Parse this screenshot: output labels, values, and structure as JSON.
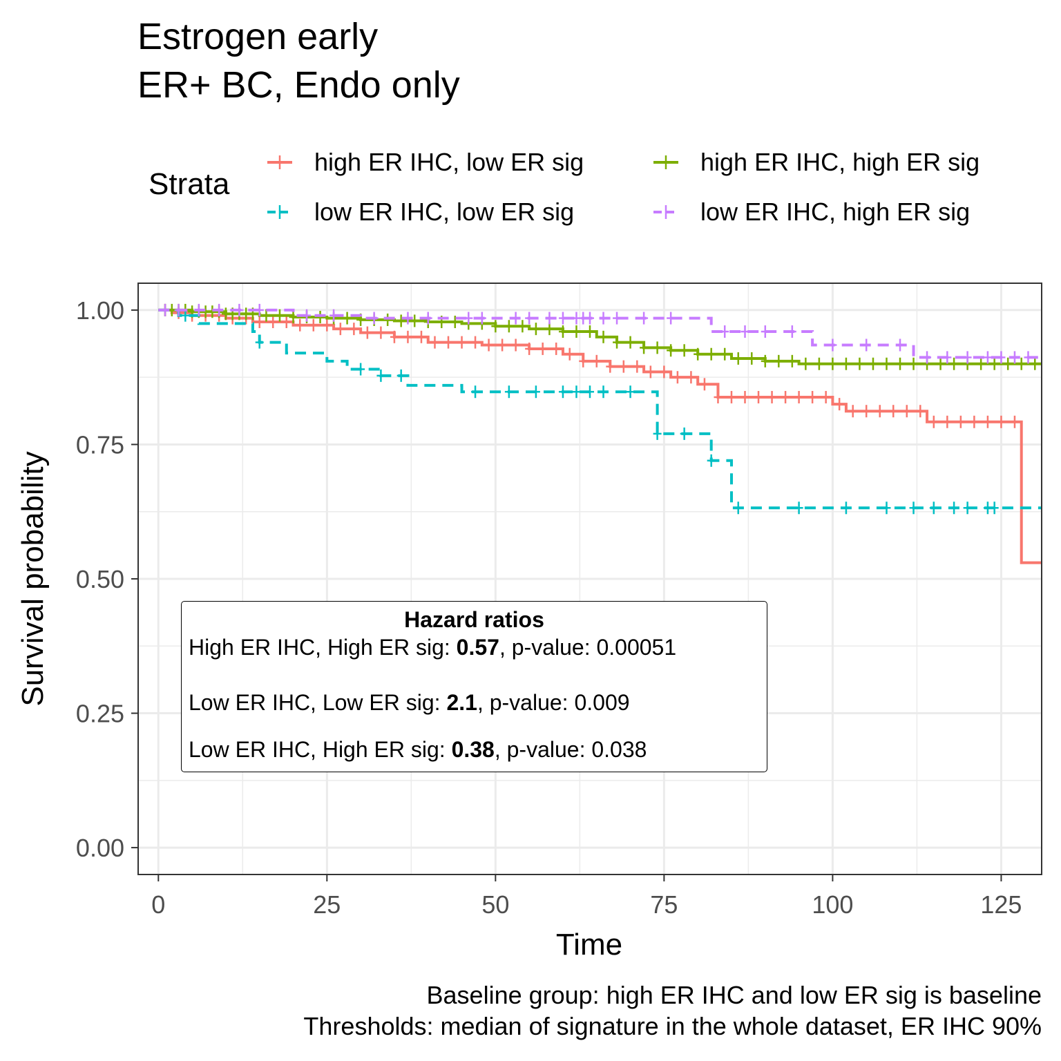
{
  "title_lines": [
    "Estrogen early",
    "ER+ BC, Endo only"
  ],
  "legend": {
    "title": "Strata",
    "items": [
      {
        "label": "high ER IHC, low ER sig",
        "color": "#F8766D",
        "dash": "solid"
      },
      {
        "label": "high ER IHC, high ER sig",
        "color": "#7CAE00",
        "dash": "solid"
      },
      {
        "label": "low ER IHC, low ER sig",
        "color": "#00BFC4",
        "dash": "dashed"
      },
      {
        "label": "low ER IHC, high ER sig",
        "color": "#C77CFF",
        "dash": "dashed"
      }
    ]
  },
  "hazard_box": {
    "title": "Hazard ratios",
    "rows": [
      {
        "prefix": "High ER IHC, High ER sig: ",
        "hr": "0.57",
        "suffix": ", p-value:  0.00051"
      },
      {
        "prefix": "Low ER IHC, Low ER sig: ",
        "hr": "2.1",
        "suffix": ", p-value:  0.009"
      },
      {
        "prefix": "Low ER IHC, High ER sig: ",
        "hr": "0.38",
        "suffix": ", p-value:  0.038"
      }
    ]
  },
  "caption": [
    "Baseline group: high ER IHC and low ER sig is baseline",
    "Thresholds: median of signature in the whole dataset, ER IHC 90%"
  ],
  "chart_data": {
    "type": "line",
    "subtype": "kaplan-meier step",
    "xlabel": "Time",
    "ylabel": "Survival probability",
    "xlim": [
      -3,
      131
    ],
    "ylim": [
      -0.05,
      1.05
    ],
    "x_ticks": [
      0,
      25,
      50,
      75,
      100,
      125
    ],
    "x_tick_labels": [
      "0",
      "25",
      "50",
      "75",
      "100",
      "125"
    ],
    "y_ticks": [
      0,
      0.25,
      0.5,
      0.75,
      1
    ],
    "y_tick_labels": [
      "0.00",
      "0.25",
      "0.50",
      "0.75",
      "1.00"
    ],
    "grid": true,
    "legend_position": "top",
    "series": [
      {
        "name": "high ER IHC, low ER sig",
        "color": "#F8766D",
        "dash": "solid",
        "steps": [
          [
            0,
            1.0
          ],
          [
            2,
            0.995
          ],
          [
            5,
            0.99
          ],
          [
            10,
            0.985
          ],
          [
            14,
            0.978
          ],
          [
            20,
            0.972
          ],
          [
            26,
            0.965
          ],
          [
            30,
            0.958
          ],
          [
            35,
            0.95
          ],
          [
            40,
            0.94
          ],
          [
            48,
            0.935
          ],
          [
            55,
            0.928
          ],
          [
            60,
            0.918
          ],
          [
            63,
            0.905
          ],
          [
            67,
            0.895
          ],
          [
            72,
            0.885
          ],
          [
            76,
            0.875
          ],
          [
            80,
            0.862
          ],
          [
            83,
            0.838
          ],
          [
            100,
            0.825
          ],
          [
            102,
            0.812
          ],
          [
            114,
            0.792
          ],
          [
            128,
            0.53
          ],
          [
            131,
            0.53
          ]
        ],
        "censor_times": [
          1,
          3,
          5,
          7,
          9,
          11,
          13,
          15,
          17,
          19,
          21,
          23,
          25,
          27,
          29,
          31,
          33,
          35,
          37,
          39,
          41,
          43,
          45,
          47,
          49,
          51,
          53,
          55,
          57,
          59,
          61,
          63,
          65,
          67,
          69,
          71,
          73,
          75,
          77,
          79,
          81,
          83,
          85,
          87,
          89,
          91,
          93,
          95,
          97,
          99,
          101,
          103,
          105,
          107,
          109,
          111,
          113,
          115,
          117,
          119,
          121,
          123,
          125,
          127
        ]
      },
      {
        "name": "high ER IHC, high ER sig",
        "color": "#7CAE00",
        "dash": "solid",
        "steps": [
          [
            0,
            1.0
          ],
          [
            5,
            0.997
          ],
          [
            10,
            0.993
          ],
          [
            15,
            0.99
          ],
          [
            20,
            0.987
          ],
          [
            25,
            0.985
          ],
          [
            30,
            0.982
          ],
          [
            35,
            0.98
          ],
          [
            40,
            0.978
          ],
          [
            45,
            0.975
          ],
          [
            50,
            0.97
          ],
          [
            55,
            0.965
          ],
          [
            60,
            0.96
          ],
          [
            65,
            0.95
          ],
          [
            68,
            0.94
          ],
          [
            72,
            0.93
          ],
          [
            76,
            0.925
          ],
          [
            80,
            0.918
          ],
          [
            85,
            0.91
          ],
          [
            90,
            0.905
          ],
          [
            95,
            0.9
          ],
          [
            131,
            0.9
          ]
        ],
        "censor_times": [
          1,
          2,
          3,
          4,
          5,
          6,
          7,
          8,
          9,
          10,
          11,
          12,
          13,
          14,
          16,
          18,
          20,
          22,
          24,
          26,
          28,
          30,
          32,
          34,
          36,
          38,
          40,
          42,
          44,
          46,
          48,
          50,
          52,
          54,
          56,
          58,
          60,
          62,
          64,
          66,
          68,
          70,
          72,
          74,
          76,
          78,
          80,
          82,
          84,
          86,
          88,
          90,
          92,
          94,
          96,
          98,
          100,
          102,
          104,
          106,
          108,
          110,
          112,
          114,
          116,
          118,
          120,
          122,
          124,
          126,
          128,
          130
        ]
      },
      {
        "name": "low ER IHC, low ER sig",
        "color": "#00BFC4",
        "dash": "dashed",
        "steps": [
          [
            0,
            1.0
          ],
          [
            3,
            0.99
          ],
          [
            6,
            0.975
          ],
          [
            14,
            0.96
          ],
          [
            15,
            0.94
          ],
          [
            19,
            0.92
          ],
          [
            25,
            0.905
          ],
          [
            28,
            0.89
          ],
          [
            33,
            0.878
          ],
          [
            37,
            0.86
          ],
          [
            45,
            0.848
          ],
          [
            73.5,
            0.848
          ],
          [
            74,
            0.77
          ],
          [
            82,
            0.72
          ],
          [
            85,
            0.632
          ],
          [
            131,
            0.632
          ]
        ],
        "censor_times": [
          4,
          15,
          30,
          33,
          36,
          47,
          52,
          56,
          60,
          62,
          64,
          66,
          70,
          74,
          78,
          82,
          86,
          95,
          102,
          108,
          112,
          115,
          118,
          120,
          123,
          124
        ]
      },
      {
        "name": "low ER IHC, high ER sig",
        "color": "#C77CFF",
        "dash": "dashed",
        "steps": [
          [
            0,
            1.0
          ],
          [
            20,
            0.99
          ],
          [
            30,
            0.985
          ],
          [
            40,
            0.985
          ],
          [
            56,
            0.985
          ],
          [
            70,
            0.985
          ],
          [
            82,
            0.96
          ],
          [
            96,
            0.96
          ],
          [
            97,
            0.935
          ],
          [
            112,
            0.912
          ],
          [
            131,
            0.912
          ]
        ],
        "censor_times": [
          1,
          3,
          6,
          9,
          12,
          15,
          22,
          26,
          32,
          37,
          40,
          46,
          48,
          53,
          55,
          58,
          60,
          62,
          63,
          64,
          66,
          68,
          72,
          76,
          84,
          87,
          90,
          94,
          100,
          105,
          110,
          114,
          117,
          120,
          123,
          125,
          127,
          129
        ]
      }
    ]
  }
}
